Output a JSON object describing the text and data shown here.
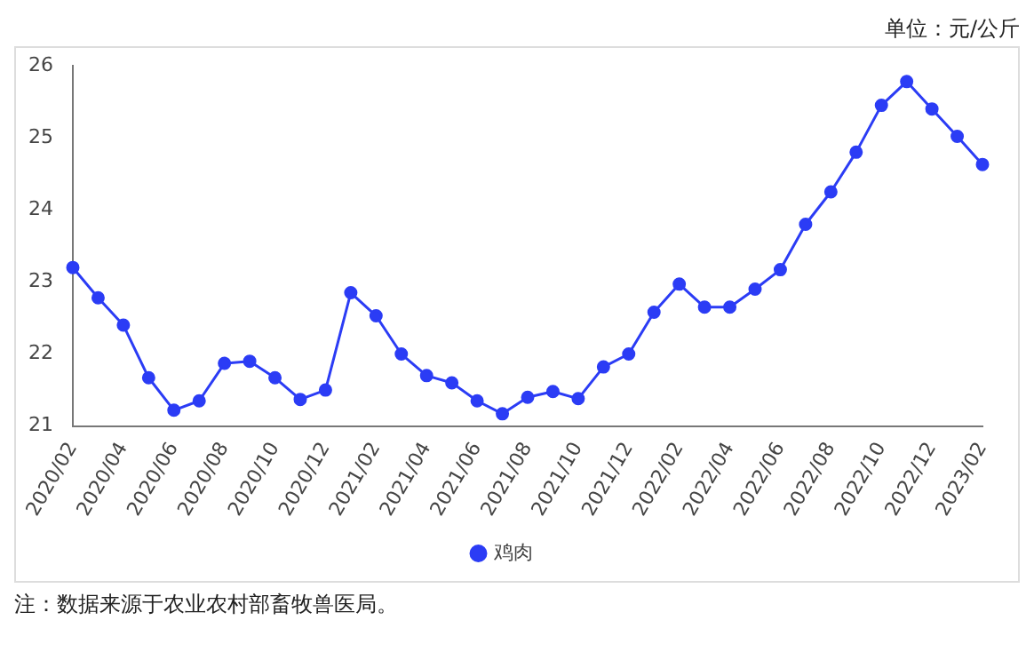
{
  "chart_data": {
    "type": "line",
    "categories": [
      "2020/02",
      null,
      "2020/04",
      null,
      "2020/06",
      null,
      "2020/08",
      null,
      "2020/10",
      null,
      "2020/12",
      null,
      "2021/02",
      null,
      "2021/04",
      null,
      "2021/06",
      null,
      "2021/08",
      null,
      "2021/10",
      null,
      "2021/12",
      null,
      "2022/02",
      null,
      "2022/04",
      null,
      "2022/06",
      null,
      "2022/08",
      null,
      "2022/10",
      null,
      "2022/12",
      null,
      "2023/02"
    ],
    "series": [
      {
        "name": "鸡肉",
        "color": "#2b3cf5",
        "values": [
          23.2,
          22.78,
          22.4,
          21.67,
          21.22,
          21.35,
          21.87,
          21.9,
          21.67,
          21.37,
          21.5,
          22.85,
          22.53,
          22.0,
          21.7,
          21.6,
          21.35,
          21.17,
          21.4,
          21.48,
          21.38,
          21.82,
          22.0,
          22.58,
          22.97,
          22.65,
          22.65,
          22.9,
          23.17,
          23.8,
          24.25,
          24.8,
          25.45,
          25.78,
          25.4,
          25.02,
          24.63
        ]
      }
    ],
    "ylim": [
      21,
      26
    ],
    "yticks": [
      21,
      22,
      23,
      24,
      25,
      26
    ],
    "grid": false,
    "legend": "bottom",
    "marker": "circle",
    "line_style": "solid",
    "annotations": [
      "单位：元/公斤",
      "注：数据来源于农业农村部畜牧兽医局。"
    ]
  }
}
